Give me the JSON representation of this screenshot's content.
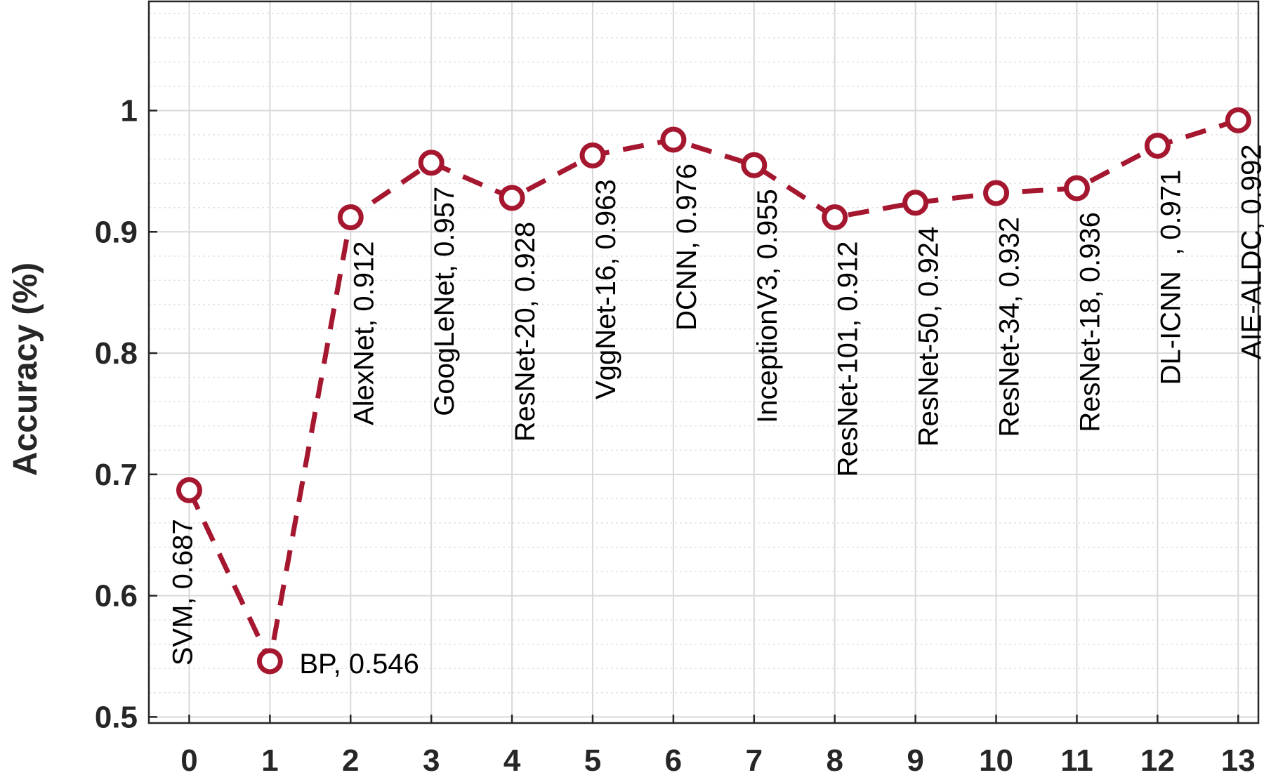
{
  "chart_data": {
    "type": "line",
    "title": "",
    "xlabel": "",
    "ylabel": "Accuracy (%)",
    "xlim": [
      -0.5,
      13.25
    ],
    "ylim": [
      0.495,
      1.09
    ],
    "x_ticks": [
      0,
      1,
      2,
      3,
      4,
      5,
      6,
      7,
      8,
      9,
      10,
      11,
      12,
      13
    ],
    "y_ticks": [
      0.5,
      0.6,
      0.7,
      0.8,
      0.9,
      1
    ],
    "y_tick_labels": [
      "0.5",
      "0.6",
      "0.7",
      "0.8",
      "0.9",
      "1"
    ],
    "y_minor_step": 0.02,
    "grid": true,
    "line_color": "#a5172f",
    "series": [
      {
        "x": [
          0,
          1,
          2,
          3,
          4,
          5,
          6,
          7,
          8,
          9,
          10,
          11,
          12,
          13
        ],
        "values": [
          0.687,
          0.546,
          0.912,
          0.957,
          0.928,
          0.963,
          0.976,
          0.955,
          0.912,
          0.924,
          0.932,
          0.936,
          0.971,
          0.992
        ],
        "point_labels": [
          "SVM, 0.687",
          "BP, 0.546",
          "AlexNet, 0.912",
          "GoogLeNet, 0.957",
          "ResNet-20, 0.928",
          "VggNet-16, 0.963",
          "DCNN, 0.976",
          "InceptionV3, 0.955",
          "ResNet-101, 0.912",
          "ResNet-50, 0.924",
          "ResNet-34, 0.932",
          "ResNet-18, 0.936",
          "DL-ICNN  , 0.971",
          "AIE-ALDC, 0.992"
        ]
      }
    ]
  }
}
